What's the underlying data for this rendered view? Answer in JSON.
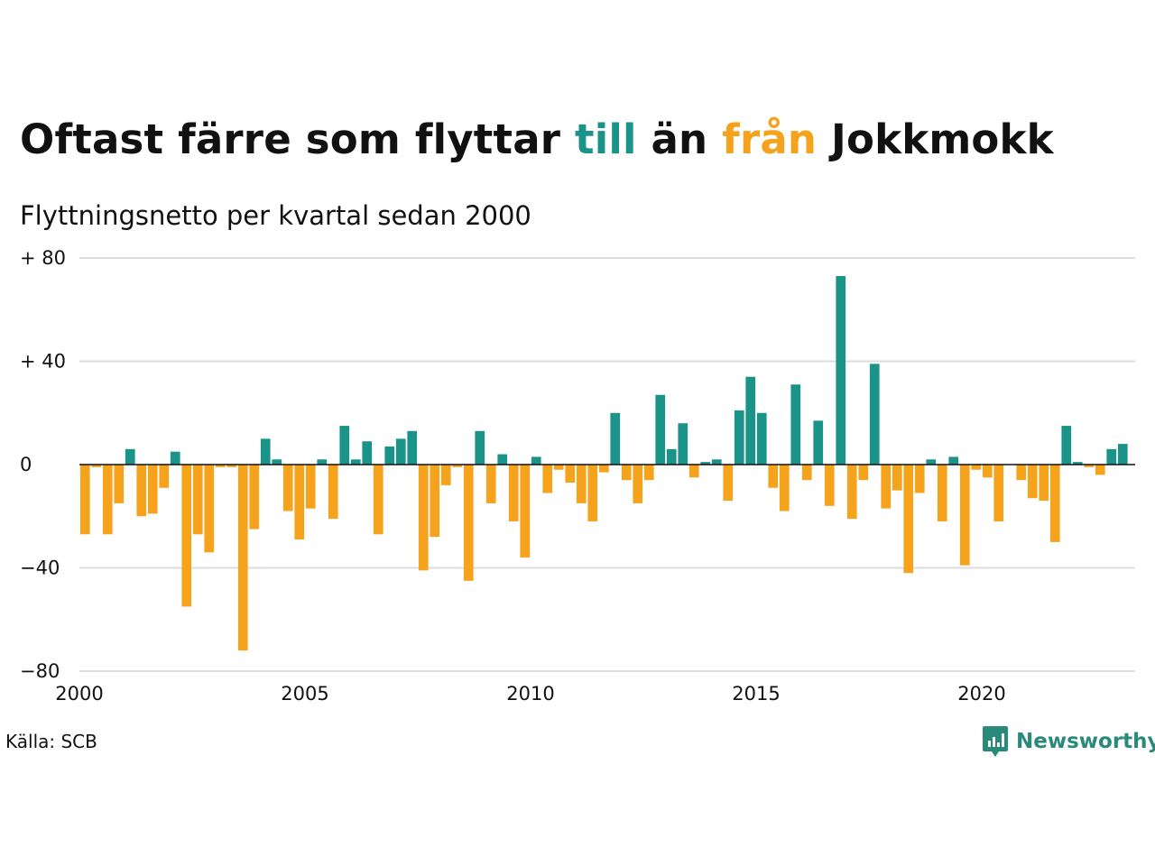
{
  "title": {
    "part1": "Oftast färre som flyttar ",
    "part2": "till",
    "part3": " än ",
    "part4": "från",
    "part5": " Jokkmokk"
  },
  "subtitle": "Flyttningsnetto per kvartal sedan 2000",
  "source": "Källa: SCB",
  "brand": "Newsworthy",
  "colors": {
    "positive": "#1a9388",
    "negative": "#f5a21c",
    "grid": "#dddddd",
    "zero": "#111111"
  },
  "chart_data": {
    "type": "bar",
    "x_start": "2000-Q1",
    "x_unit": "quarter",
    "ylim": [
      -80,
      80
    ],
    "y_ticks": [
      {
        "value": 80,
        "label": "+ 80"
      },
      {
        "value": 40,
        "label": "+ 40"
      },
      {
        "value": 0,
        "label": "0"
      },
      {
        "value": -40,
        "label": "−40"
      },
      {
        "value": -80,
        "label": "−80"
      }
    ],
    "x_ticks": [
      "2000",
      "2005",
      "2010",
      "2015",
      "2020"
    ],
    "grid": true,
    "values": [
      -27,
      -1,
      -27,
      -15,
      6,
      -20,
      -19,
      -9,
      5,
      -55,
      -27,
      -34,
      -1,
      -1,
      -72,
      -25,
      10,
      2,
      -18,
      -29,
      -17,
      2,
      -21,
      15,
      2,
      9,
      -27,
      7,
      10,
      13,
      -41,
      -28,
      -8,
      -1,
      -45,
      13,
      -15,
      4,
      -22,
      -36,
      3,
      -11,
      -2,
      -7,
      -15,
      -22,
      -3,
      20,
      -6,
      -15,
      -6,
      27,
      6,
      16,
      -5,
      1,
      2,
      -14,
      21,
      34,
      20,
      -9,
      -18,
      31,
      -6,
      17,
      -16,
      73,
      -21,
      -6,
      39,
      -17,
      -10,
      -42,
      -11,
      2,
      -22,
      3,
      -39,
      -2,
      -5,
      -22,
      0,
      -6,
      -13,
      -14,
      -30,
      15,
      1,
      -1,
      -4,
      6,
      8
    ]
  }
}
